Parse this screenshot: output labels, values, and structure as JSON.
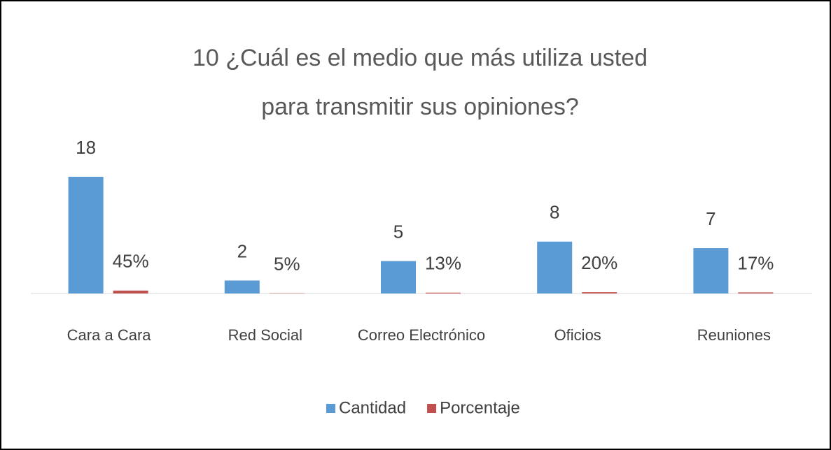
{
  "chart_data": {
    "type": "bar",
    "title": [
      "10 ¿Cuál es el medio que más utiliza usted",
      "para transmitir sus opiniones?"
    ],
    "categories": [
      "Cara a Cara",
      "Red Social",
      "Correo Electrónico",
      "Oficios",
      "Reuniones"
    ],
    "series": [
      {
        "name": "Cantidad",
        "color": "#5b9bd5",
        "values": [
          18,
          2,
          5,
          8,
          7
        ]
      },
      {
        "name": "Porcentaje",
        "color": "#c0504d",
        "values": [
          0.45,
          0.05,
          0.13,
          0.2,
          0.17
        ],
        "value_labels": [
          "45%",
          "5%",
          "13%",
          "20%",
          "17%"
        ]
      }
    ],
    "ylim": [
      0,
      18
    ],
    "legend": "bottom"
  }
}
